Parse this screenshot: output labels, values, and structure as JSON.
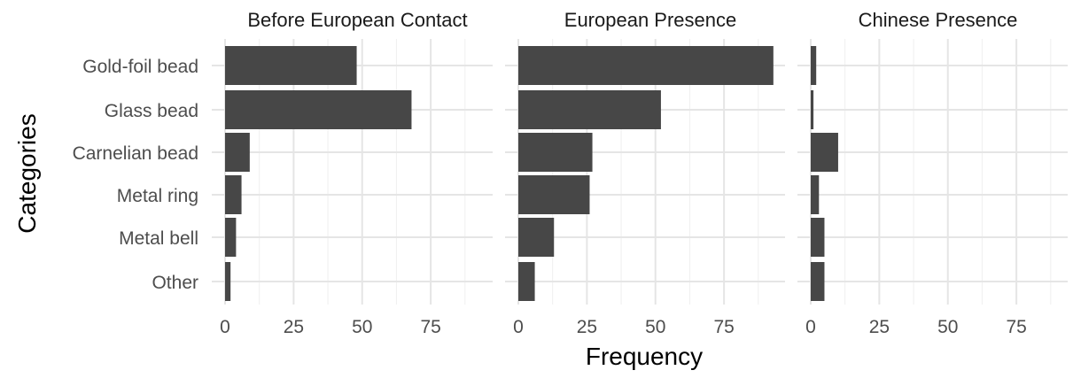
{
  "chart_data": {
    "type": "bar",
    "orientation": "horizontal",
    "facets": [
      "Before European Contact",
      "European Presence",
      "Chinese Presence"
    ],
    "categories": [
      "Gold-foil bead",
      "Glass bead",
      "Carnelian bead",
      "Metal ring",
      "Metal bell",
      "Other"
    ],
    "series": [
      {
        "facet": "Before European Contact",
        "values": [
          48,
          68,
          9,
          6,
          4,
          2
        ]
      },
      {
        "facet": "European Presence",
        "values": [
          93,
          52,
          27,
          26,
          13,
          6
        ]
      },
      {
        "facet": "Chinese Presence",
        "values": [
          2,
          1,
          10,
          3,
          5,
          5
        ]
      }
    ],
    "x_ticks": [
      "0",
      "25",
      "50",
      "75"
    ],
    "x_tick_values": [
      0,
      25,
      50,
      75
    ],
    "xlim": [
      0,
      97
    ],
    "xlabel": "Frequency",
    "ylabel": "Categories",
    "grid": true,
    "colors": {
      "bar": "#474747",
      "grid_major": "#e5e5e5",
      "grid_minor": "#f0f0f0",
      "background": "#ffffff"
    }
  }
}
